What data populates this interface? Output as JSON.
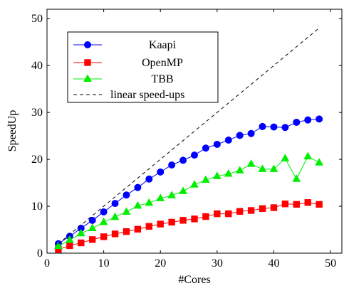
{
  "chart_data": {
    "type": "line",
    "title": "",
    "xlabel": "#Cores",
    "ylabel": "SpeedUp",
    "xlim": [
      0,
      52
    ],
    "ylim": [
      0,
      52
    ],
    "xticks": [
      0,
      10,
      20,
      30,
      40,
      50
    ],
    "yticks": [
      0,
      10,
      20,
      30,
      40,
      50
    ],
    "grid": false,
    "legend_position": "top-left",
    "x": [
      2,
      4,
      6,
      8,
      10,
      12,
      14,
      16,
      18,
      20,
      22,
      24,
      26,
      28,
      30,
      32,
      34,
      36,
      38,
      40,
      42,
      44,
      46,
      48
    ],
    "series": [
      {
        "name": "Kaapi",
        "color": "#0000ff",
        "marker": "circle",
        "values": [
          2.0,
          3.6,
          5.3,
          7.0,
          8.8,
          10.6,
          12.4,
          14.0,
          15.8,
          17.3,
          18.8,
          19.8,
          20.9,
          22.4,
          23.2,
          24.1,
          25.1,
          25.5,
          27.0,
          26.9,
          26.8,
          27.9,
          28.4,
          28.6
        ]
      },
      {
        "name": "OpenMP",
        "color": "#ff0000",
        "marker": "square",
        "values": [
          0.8,
          1.6,
          2.2,
          2.9,
          3.5,
          4.1,
          4.6,
          5.1,
          5.7,
          6.2,
          6.6,
          7.0,
          7.3,
          7.8,
          8.4,
          8.4,
          8.9,
          9.1,
          9.5,
          9.7,
          10.5,
          10.4,
          10.8,
          10.4
        ]
      },
      {
        "name": "TBB",
        "color": "#00ee00",
        "marker": "triangle",
        "values": [
          1.5,
          2.8,
          4.2,
          5.3,
          6.6,
          7.7,
          8.8,
          10.1,
          10.7,
          11.7,
          12.3,
          13.2,
          14.6,
          15.6,
          16.4,
          16.9,
          17.6,
          19.0,
          17.9,
          17.9,
          20.2,
          15.8,
          20.6,
          19.3
        ]
      },
      {
        "name": "linear speed-ups",
        "color": "#000000",
        "dashed": true,
        "x": [
          2,
          48
        ],
        "values": [
          2,
          48
        ]
      }
    ]
  }
}
